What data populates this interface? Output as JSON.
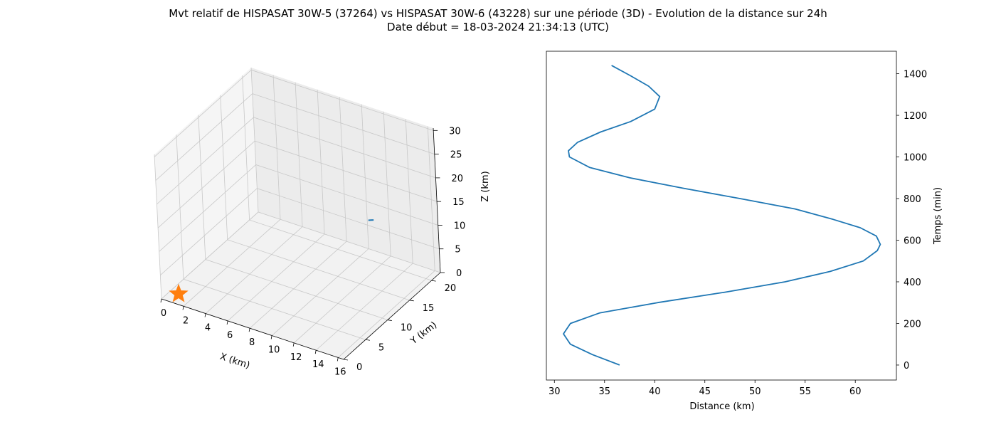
{
  "figure": {
    "title_line1": "Mvt relatif de HISPASAT 30W-5 (37264) vs HISPASAT 30W-6 (43228) sur une période (3D) - Evolution de la distance sur 24h",
    "title_line2": "Date début = 18-03-2024 21:34:13 (UTC)"
  },
  "chart_data": [
    {
      "type": "scatter3d",
      "xlabel": "X (km)",
      "ylabel": "Y (km)",
      "zlabel": "Z (km)",
      "x_ticks": [
        0,
        2,
        4,
        6,
        8,
        10,
        12,
        14,
        16
      ],
      "y_ticks": [
        0,
        5,
        10,
        15,
        20
      ],
      "z_ticks": [
        0,
        5,
        10,
        15,
        20,
        25,
        30
      ],
      "xlim": [
        0,
        16.5
      ],
      "ylim": [
        0,
        22
      ],
      "zlim": [
        0,
        30.5
      ],
      "grid": true,
      "series": [
        {
          "color": "#1f77b4",
          "points": [
            {
              "x": 15.9,
              "y": 8.3,
              "z": 22.0
            },
            {
              "x": 16.1,
              "y": 8.4,
              "z": 22.1
            },
            {
              "x": 16.3,
              "y": 8.5,
              "z": 22.2
            }
          ]
        }
      ],
      "markers": [
        {
          "symbol": "star",
          "color": "#ff7f0e",
          "x": 0,
          "y": 0,
          "z": 0
        }
      ]
    },
    {
      "type": "line",
      "xlabel": "Distance (km)",
      "ylabel": "Temps (min)",
      "x_ticks": [
        30,
        35,
        40,
        45,
        50,
        55,
        60
      ],
      "y_ticks": [
        0,
        200,
        400,
        600,
        800,
        1000,
        1200,
        1400
      ],
      "xlim": [
        29.2,
        64.1
      ],
      "ylim": [
        -72,
        1508
      ],
      "grid": false,
      "series": [
        {
          "color": "#1f77b4",
          "points": [
            [
              36.5,
              0
            ],
            [
              33.8,
              50
            ],
            [
              31.6,
              100
            ],
            [
              30.9,
              150
            ],
            [
              31.6,
              200
            ],
            [
              34.5,
              250
            ],
            [
              40.3,
              300
            ],
            [
              47.0,
              350
            ],
            [
              53.0,
              400
            ],
            [
              57.5,
              450
            ],
            [
              60.8,
              500
            ],
            [
              62.2,
              550
            ],
            [
              62.5,
              580
            ],
            [
              62.1,
              620
            ],
            [
              60.5,
              660
            ],
            [
              57.8,
              700
            ],
            [
              54.0,
              750
            ],
            [
              48.5,
              800
            ],
            [
              42.8,
              850
            ],
            [
              37.5,
              900
            ],
            [
              33.5,
              950
            ],
            [
              31.5,
              1000
            ],
            [
              31.4,
              1030
            ],
            [
              32.3,
              1070
            ],
            [
              34.6,
              1120
            ],
            [
              37.6,
              1170
            ],
            [
              40.0,
              1230
            ],
            [
              40.5,
              1290
            ],
            [
              39.4,
              1340
            ],
            [
              37.6,
              1390
            ],
            [
              35.7,
              1440
            ]
          ]
        }
      ]
    }
  ]
}
